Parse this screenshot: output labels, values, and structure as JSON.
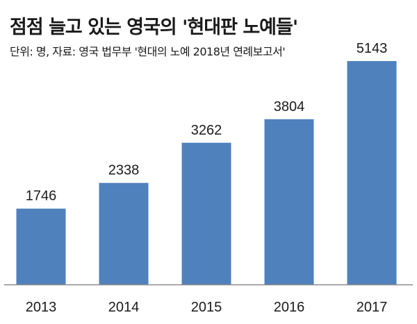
{
  "colors": {
    "bar": "#4f81bd",
    "axis": "#8c8c8c",
    "text": "#1a1a1a",
    "background": "#ffffff"
  },
  "chart_data": {
    "type": "bar",
    "title": "점점 늘고 있는 영국의 '현대판 노예들'",
    "subtitle": "단위: 명, 자료: 영국 법무부 '현대의 노예 2018년 연례보고서'",
    "xlabel": "",
    "ylabel": "",
    "categories": [
      "2013",
      "2014",
      "2015",
      "2016",
      "2017"
    ],
    "values": [
      1746,
      2338,
      3262,
      3804,
      5143
    ],
    "value_labels": [
      "1746",
      "2338",
      "3262",
      "3804",
      "5143"
    ],
    "ylim": [
      0,
      5143
    ],
    "grid": false,
    "legend": "none"
  }
}
